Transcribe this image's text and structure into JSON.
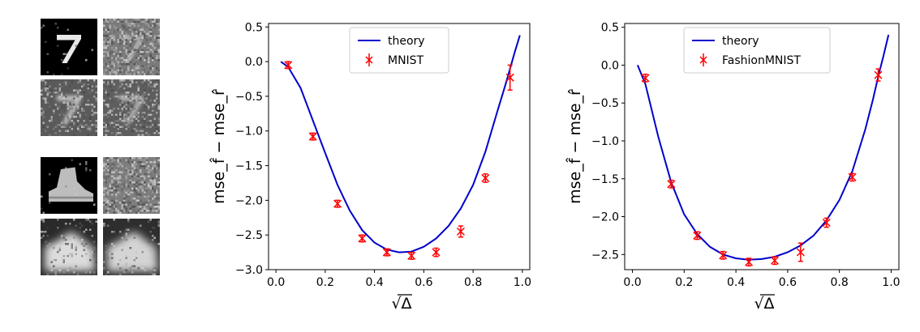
{
  "thumbnails": {
    "mnist": [
      {
        "name": "mnist-clean-digit",
        "glyph": "7",
        "noise": 0.02,
        "blur": 0,
        "bg": "#000000",
        "fg": "#e8e8e8"
      },
      {
        "name": "mnist-noisy-digit",
        "glyph": "7",
        "noise": 0.55,
        "blur": 0,
        "bg": "#7a7a7a",
        "fg": "#a8a8a8"
      },
      {
        "name": "mnist-reconstruction-a",
        "glyph": "7",
        "noise": 0.3,
        "blur": 1,
        "bg": "#5a5a5a",
        "fg": "#c4c4c4"
      },
      {
        "name": "mnist-reconstruction-b",
        "glyph": "7",
        "noise": 0.35,
        "blur": 1,
        "bg": "#5e5e5e",
        "fg": "#b8b8b8"
      }
    ],
    "fashion": [
      {
        "name": "fashion-clean-boot",
        "shape": "boot",
        "noise": 0.02,
        "blur": 0,
        "bg": "#000000",
        "fg": "#bdbdbd"
      },
      {
        "name": "fashion-noisy-boot",
        "shape": "noise",
        "noise": 0.6,
        "blur": 0,
        "bg": "#7d7d7d",
        "fg": "#9a9a9a"
      },
      {
        "name": "fashion-reconstruction-a",
        "shape": "blob",
        "noise": 0.12,
        "blur": 2,
        "bg": "#2a2a2a",
        "fg": "#dcdcdc"
      },
      {
        "name": "fashion-reconstruction-b",
        "shape": "blob",
        "noise": 0.12,
        "blur": 2,
        "bg": "#2e2e2e",
        "fg": "#d4d4d4"
      }
    ]
  },
  "chart_data": [
    {
      "type": "line",
      "title": "",
      "xlabel": "√Δ",
      "ylabel": "mse_f̂ − mse_r̂",
      "xlim": [
        -0.03,
        1.03
      ],
      "ylim": [
        -3.0,
        0.55
      ],
      "xticks": [
        0.0,
        0.2,
        0.4,
        0.6,
        0.8,
        1.0
      ],
      "xtick_labels": [
        "0.0",
        "0.2",
        "0.4",
        "0.6",
        "0.8",
        "1.0"
      ],
      "yticks": [
        0.5,
        0.0,
        -0.5,
        -1.0,
        -1.5,
        -2.0,
        -2.5,
        -3.0
      ],
      "ytick_labels": [
        "0.5",
        "0.0",
        "−0.5",
        "−1.0",
        "−1.5",
        "−2.0",
        "−2.5",
        "−3.0"
      ],
      "grid": false,
      "legend_position": "top-center",
      "series": [
        {
          "name": "theory",
          "kind": "line",
          "color": "#0000cc",
          "x": [
            0.02,
            0.05,
            0.1,
            0.15,
            0.2,
            0.25,
            0.3,
            0.35,
            0.4,
            0.45,
            0.5,
            0.55,
            0.6,
            0.65,
            0.7,
            0.75,
            0.8,
            0.85,
            0.9,
            0.93,
            0.95,
            0.97,
            0.99
          ],
          "y": [
            0.0,
            -0.08,
            -0.38,
            -0.85,
            -1.32,
            -1.78,
            -2.15,
            -2.43,
            -2.61,
            -2.71,
            -2.75,
            -2.74,
            -2.67,
            -2.55,
            -2.37,
            -2.12,
            -1.78,
            -1.3,
            -0.7,
            -0.35,
            -0.1,
            0.15,
            0.38
          ]
        },
        {
          "name": "MNIST",
          "kind": "errorbar",
          "color": "#ff0000",
          "x": [
            0.05,
            0.15,
            0.25,
            0.35,
            0.45,
            0.55,
            0.65,
            0.75,
            0.85,
            0.95
          ],
          "y": [
            -0.05,
            -1.08,
            -2.05,
            -2.55,
            -2.75,
            -2.8,
            -2.75,
            -2.45,
            -1.68,
            -0.23
          ],
          "err": [
            0.05,
            0.05,
            0.05,
            0.05,
            0.05,
            0.05,
            0.06,
            0.08,
            0.06,
            0.18
          ]
        }
      ]
    },
    {
      "type": "line",
      "title": "",
      "xlabel": "√Δ",
      "ylabel": "mse_f̂ − mse_r̂",
      "xlim": [
        -0.03,
        1.03
      ],
      "ylim": [
        -2.7,
        0.55
      ],
      "xticks": [
        0.0,
        0.2,
        0.4,
        0.6,
        0.8,
        1.0
      ],
      "xtick_labels": [
        "0.0",
        "0.2",
        "0.4",
        "0.6",
        "0.8",
        "1.0"
      ],
      "yticks": [
        0.5,
        0.0,
        -0.5,
        -1.0,
        -1.5,
        -2.0,
        -2.5
      ],
      "ytick_labels": [
        "0.5",
        "0.0",
        "−0.5",
        "−1.0",
        "−1.5",
        "−2.0",
        "−2.5"
      ],
      "grid": false,
      "legend_position": "top-center",
      "series": [
        {
          "name": "theory",
          "kind": "line",
          "color": "#0000cc",
          "x": [
            0.02,
            0.05,
            0.1,
            0.15,
            0.2,
            0.25,
            0.3,
            0.35,
            0.4,
            0.45,
            0.5,
            0.55,
            0.6,
            0.65,
            0.7,
            0.75,
            0.8,
            0.85,
            0.9,
            0.93,
            0.95,
            0.97,
            0.99
          ],
          "y": [
            0.0,
            -0.25,
            -0.95,
            -1.55,
            -1.97,
            -2.23,
            -2.4,
            -2.5,
            -2.55,
            -2.57,
            -2.56,
            -2.53,
            -2.47,
            -2.38,
            -2.25,
            -2.05,
            -1.78,
            -1.4,
            -0.85,
            -0.45,
            -0.15,
            0.12,
            0.4
          ]
        },
        {
          "name": "FashionMNIST",
          "kind": "errorbar",
          "color": "#ff0000",
          "x": [
            0.05,
            0.15,
            0.25,
            0.35,
            0.45,
            0.55,
            0.65,
            0.75,
            0.85,
            0.95
          ],
          "y": [
            -0.17,
            -1.57,
            -2.25,
            -2.51,
            -2.6,
            -2.58,
            -2.47,
            -2.08,
            -1.48,
            -0.13
          ],
          "err": [
            0.05,
            0.05,
            0.05,
            0.05,
            0.05,
            0.05,
            0.12,
            0.06,
            0.05,
            0.08
          ]
        }
      ]
    }
  ]
}
